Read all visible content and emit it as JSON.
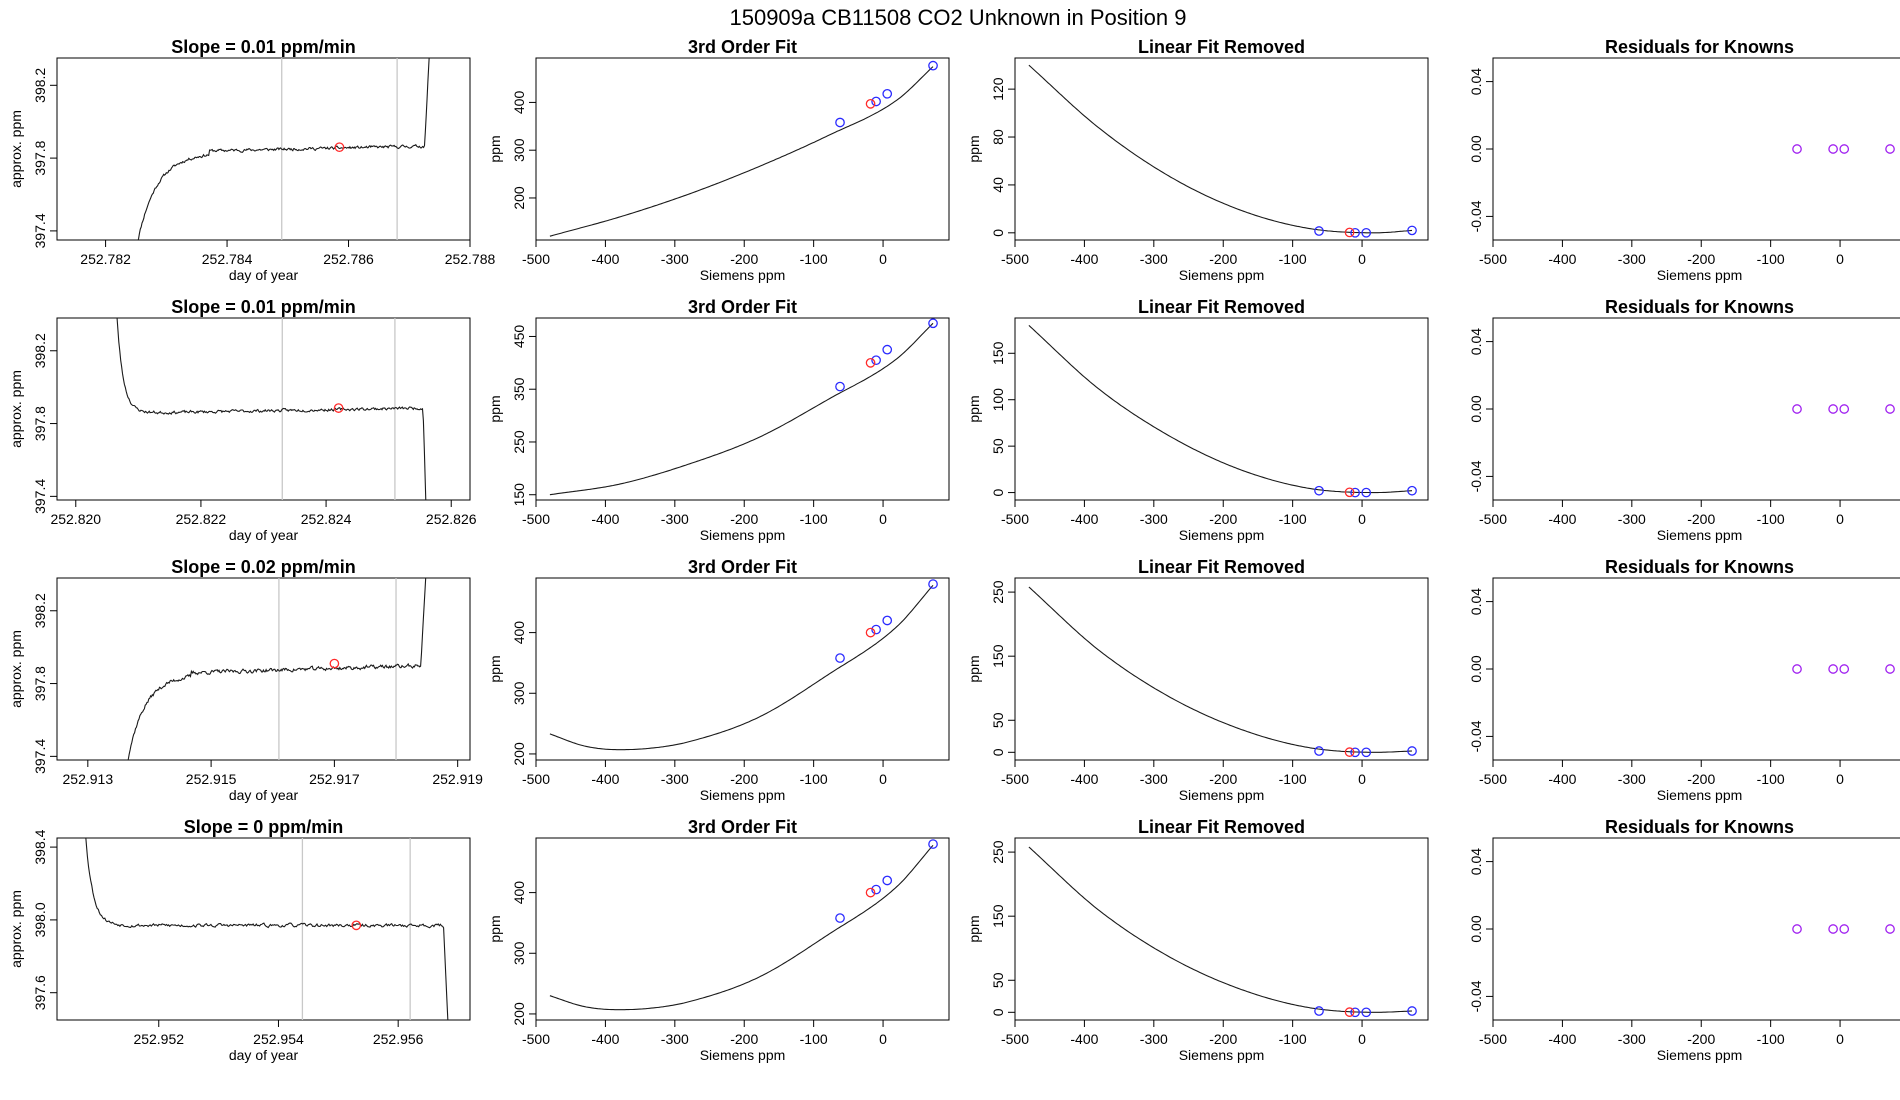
{
  "figure_title": "150909a      CB11508    CO2 Unknown in Position  9",
  "chart_data": [
    {
      "type": "line",
      "title": "Slope =  0.01  ppm/min",
      "xlabel": "day of year",
      "ylabel": "approx. ppm",
      "xlim": [
        252.7812,
        252.788
      ],
      "ylim": [
        397.35,
        398.35
      ],
      "xticks": [
        252.782,
        252.784,
        252.786,
        252.788
      ],
      "xtick_labels": [
        "252.782",
        "252.784",
        "252.786",
        "252.788"
      ],
      "yticks": [
        397.4,
        397.8,
        398.2
      ],
      "ytick_labels": [
        "397.4",
        "397.8",
        "398.2"
      ],
      "vlines": [
        252.7849,
        252.7868
      ],
      "marker": {
        "x": 252.78585,
        "y": 397.86
      },
      "trace": {
        "x_start": 252.7825,
        "x_end": 252.78735,
        "start": 397.3,
        "level": 397.84,
        "end": 398.5,
        "rise_frac": 0.25,
        "end_frac": 0.02,
        "rise_dir": 1,
        "slope": 0.035,
        "noise": 0.006,
        "seed": 11
      }
    },
    {
      "type": "line",
      "title": "3rd Order Fit",
      "xlabel": "Siemens ppm",
      "ylabel": "ppm",
      "xlim": [
        -500,
        95
      ],
      "ylim": [
        112,
        493
      ],
      "xticks": [
        -500,
        -400,
        -300,
        -200,
        -100,
        0
      ],
      "xtick_labels": [
        "-500",
        "-400",
        "-300",
        "-200",
        "-100",
        "0"
      ],
      "yticks": [
        200,
        300,
        400
      ],
      "ytick_labels": [
        "200",
        "300",
        "400"
      ],
      "curve": {
        "x": [
          -480,
          -380,
          -280,
          -180,
          -80,
          20,
          72
        ],
        "y": [
          120,
          160,
          208,
          265,
          330,
          405,
          475
        ]
      },
      "points_blue": [
        {
          "x": -62,
          "y": 358
        },
        {
          "x": -10,
          "y": 402
        },
        {
          "x": 6,
          "y": 418
        },
        {
          "x": 72,
          "y": 477
        }
      ],
      "points_red": [
        {
          "x": -18,
          "y": 397
        }
      ]
    },
    {
      "type": "line",
      "title": "Linear Fit Removed",
      "xlabel": "Siemens ppm",
      "ylabel": "ppm",
      "xlim": [
        -500,
        95
      ],
      "ylim": [
        -6,
        146
      ],
      "xticks": [
        -500,
        -400,
        -300,
        -200,
        -100,
        0
      ],
      "xtick_labels": [
        "-500",
        "-400",
        "-300",
        "-200",
        "-100",
        "0"
      ],
      "yticks": [
        0,
        40,
        80,
        120
      ],
      "ytick_labels": [
        "0",
        "40",
        "80",
        "120"
      ],
      "curve": {
        "x": [
          -480,
          -380,
          -280,
          -180,
          -80,
          20,
          72
        ],
        "y": [
          140,
          88,
          48,
          20,
          4,
          0,
          2
        ]
      },
      "points_blue": [
        {
          "x": -62,
          "y": 1.5
        },
        {
          "x": -10,
          "y": 0
        },
        {
          "x": 6,
          "y": 0
        },
        {
          "x": 72,
          "y": 2
        }
      ],
      "points_red": [
        {
          "x": -18,
          "y": 0.3
        }
      ]
    },
    {
      "type": "scatter",
      "title": "Residuals for Knowns",
      "xlabel": "Siemens ppm",
      "ylabel": "",
      "xlim": [
        -500,
        95
      ],
      "ylim": [
        -0.054,
        0.054
      ],
      "xticks": [
        -500,
        -400,
        -300,
        -200,
        -100,
        0
      ],
      "xtick_labels": [
        "-500",
        "-400",
        "-300",
        "-200",
        "-100",
        "0"
      ],
      "yticks": [
        -0.04,
        0,
        0.04
      ],
      "ytick_labels": [
        "-0.04",
        "0.00",
        "0.04"
      ],
      "points_purple": [
        {
          "x": -62,
          "y": 0
        },
        {
          "x": -10,
          "y": 0
        },
        {
          "x": 6,
          "y": 0
        },
        {
          "x": 72,
          "y": 0
        }
      ]
    },
    {
      "type": "line",
      "title": "Slope =  0.01  ppm/min",
      "xlabel": "day of year",
      "ylabel": "approx. ppm",
      "xlim": [
        252.8197,
        252.8263
      ],
      "ylim": [
        397.38,
        398.38
      ],
      "xticks": [
        252.82,
        252.822,
        252.824,
        252.826
      ],
      "xtick_labels": [
        "252.820",
        "252.822",
        "252.824",
        "252.826"
      ],
      "yticks": [
        397.4,
        397.8,
        398.2
      ],
      "ytick_labels": [
        "397.4",
        "397.8",
        "398.2"
      ],
      "vlines": [
        252.8233,
        252.8251
      ],
      "marker": {
        "x": 252.8242,
        "y": 397.885
      },
      "trace": {
        "x_start": 252.8206,
        "x_end": 252.8256,
        "start": 398.8,
        "level": 397.86,
        "end": 397.3,
        "rise_frac": 0.14,
        "end_frac": 0.01,
        "rise_dir": -1,
        "slope": 0.03,
        "noise": 0.006,
        "seed": 23
      }
    },
    {
      "type": "line",
      "title": "3rd Order Fit",
      "xlabel": "Siemens ppm",
      "ylabel": "ppm",
      "xlim": [
        -500,
        95
      ],
      "ylim": [
        140,
        485
      ],
      "xticks": [
        -500,
        -400,
        -300,
        -200,
        -100,
        0
      ],
      "xtick_labels": [
        "-500",
        "-400",
        "-300",
        "-200",
        "-100",
        "0"
      ],
      "yticks": [
        150,
        250,
        350,
        450
      ],
      "ytick_labels": [
        "150",
        "250",
        "350",
        "450"
      ],
      "curve": {
        "x": [
          -480,
          -380,
          -280,
          -180,
          -80,
          20,
          72
        ],
        "y": [
          150,
          170,
          208,
          258,
          330,
          408,
          475
        ]
      },
      "points_blue": [
        {
          "x": -62,
          "y": 355
        },
        {
          "x": -10,
          "y": 405
        },
        {
          "x": 6,
          "y": 425
        },
        {
          "x": 72,
          "y": 475
        }
      ],
      "points_red": [
        {
          "x": -18,
          "y": 400
        }
      ]
    },
    {
      "type": "line",
      "title": "Linear Fit Removed",
      "xlabel": "Siemens ppm",
      "ylabel": "ppm",
      "xlim": [
        -500,
        95
      ],
      "ylim": [
        -8,
        188
      ],
      "xticks": [
        -500,
        -400,
        -300,
        -200,
        -100,
        0
      ],
      "xtick_labels": [
        "-500",
        "-400",
        "-300",
        "-200",
        "-100",
        "0"
      ],
      "yticks": [
        0,
        50,
        100,
        150
      ],
      "ytick_labels": [
        "0",
        "50",
        "100",
        "150"
      ],
      "curve": {
        "x": [
          -480,
          -380,
          -280,
          -180,
          -80,
          20,
          72
        ],
        "y": [
          180,
          112,
          62,
          26,
          5,
          0,
          2
        ]
      },
      "points_blue": [
        {
          "x": -62,
          "y": 2
        },
        {
          "x": -10,
          "y": 0
        },
        {
          "x": 6,
          "y": 0
        },
        {
          "x": 72,
          "y": 2
        }
      ],
      "points_red": [
        {
          "x": -18,
          "y": 0.3
        }
      ]
    },
    {
      "type": "scatter",
      "title": "Residuals for Knowns",
      "xlabel": "Siemens ppm",
      "ylabel": "",
      "xlim": [
        -500,
        95
      ],
      "ylim": [
        -0.054,
        0.054
      ],
      "xticks": [
        -500,
        -400,
        -300,
        -200,
        -100,
        0
      ],
      "xtick_labels": [
        "-500",
        "-400",
        "-300",
        "-200",
        "-100",
        "0"
      ],
      "yticks": [
        -0.04,
        0,
        0.04
      ],
      "ytick_labels": [
        "-0.04",
        "0.00",
        "0.04"
      ],
      "points_purple": [
        {
          "x": -62,
          "y": 0
        },
        {
          "x": -10,
          "y": 0
        },
        {
          "x": 6,
          "y": 0
        },
        {
          "x": 72,
          "y": 0
        }
      ]
    },
    {
      "type": "line",
      "title": "Slope =  0.02  ppm/min",
      "xlabel": "day of year",
      "ylabel": "approx. ppm",
      "xlim": [
        252.9125,
        252.9192
      ],
      "ylim": [
        397.38,
        398.38
      ],
      "xticks": [
        252.913,
        252.915,
        252.917,
        252.919
      ],
      "xtick_labels": [
        "252.913",
        "252.915",
        "252.917",
        "252.919"
      ],
      "yticks": [
        397.4,
        397.8,
        398.2
      ],
      "ytick_labels": [
        "397.4",
        "397.8",
        "398.2"
      ],
      "vlines": [
        252.9161,
        252.918
      ],
      "marker": {
        "x": 252.917,
        "y": 397.91
      },
      "trace": {
        "x_start": 252.9136,
        "x_end": 252.9185,
        "start": 397.3,
        "level": 397.86,
        "end": 398.5,
        "rise_frac": 0.22,
        "end_frac": 0.02,
        "rise_dir": 1,
        "slope": 0.05,
        "noise": 0.008,
        "seed": 37
      }
    },
    {
      "type": "line",
      "title": "3rd Order Fit",
      "xlabel": "Siemens ppm",
      "ylabel": "ppm",
      "xlim": [
        -500,
        95
      ],
      "ylim": [
        190,
        490
      ],
      "xticks": [
        -500,
        -400,
        -300,
        -200,
        -100,
        0
      ],
      "xtick_labels": [
        "-500",
        "-400",
        "-300",
        "-200",
        "-100",
        "0"
      ],
      "yticks": [
        200,
        300,
        400
      ],
      "ytick_labels": [
        "200",
        "300",
        "400"
      ],
      "curve": {
        "x": [
          -480,
          -430,
          -380,
          -330,
          -280,
          -180,
          -80,
          20,
          72
        ],
        "y": [
          233,
          213,
          207,
          210,
          220,
          260,
          330,
          410,
          478
        ]
      },
      "points_blue": [
        {
          "x": -62,
          "y": 358
        },
        {
          "x": -10,
          "y": 405
        },
        {
          "x": 6,
          "y": 420
        },
        {
          "x": 72,
          "y": 480
        }
      ],
      "points_red": [
        {
          "x": -18,
          "y": 400
        }
      ]
    },
    {
      "type": "line",
      "title": "Linear Fit Removed",
      "xlabel": "Siemens ppm",
      "ylabel": "ppm",
      "xlim": [
        -500,
        95
      ],
      "ylim": [
        -12,
        272
      ],
      "xticks": [
        -500,
        -400,
        -300,
        -200,
        -100,
        0
      ],
      "xtick_labels": [
        "-500",
        "-400",
        "-300",
        "-200",
        "-100",
        "0"
      ],
      "yticks": [
        0,
        50,
        150,
        250
      ],
      "ytick_labels": [
        "0",
        "50",
        "150",
        "250"
      ],
      "curve": {
        "x": [
          -480,
          -380,
          -280,
          -180,
          -80,
          20,
          72
        ],
        "y": [
          258,
          160,
          88,
          38,
          8,
          0,
          2
        ]
      },
      "points_blue": [
        {
          "x": -62,
          "y": 2
        },
        {
          "x": -10,
          "y": 0
        },
        {
          "x": 6,
          "y": 0
        },
        {
          "x": 72,
          "y": 2
        }
      ],
      "points_red": [
        {
          "x": -18,
          "y": 0.3
        }
      ]
    },
    {
      "type": "scatter",
      "title": "Residuals for Knowns",
      "xlabel": "Siemens ppm",
      "ylabel": "",
      "xlim": [
        -500,
        95
      ],
      "ylim": [
        -0.054,
        0.054
      ],
      "xticks": [
        -500,
        -400,
        -300,
        -200,
        -100,
        0
      ],
      "xtick_labels": [
        "-500",
        "-400",
        "-300",
        "-200",
        "-100",
        "0"
      ],
      "yticks": [
        -0.04,
        0,
        0.04
      ],
      "ytick_labels": [
        "-0.04",
        "0.00",
        "0.04"
      ],
      "points_purple": [
        {
          "x": -62,
          "y": 0
        },
        {
          "x": -10,
          "y": 0
        },
        {
          "x": 6,
          "y": 0
        },
        {
          "x": 72,
          "y": 0
        }
      ]
    },
    {
      "type": "line",
      "title": "Slope =  0  ppm/min",
      "xlabel": "day of year",
      "ylabel": "approx. ppm",
      "xlim": [
        252.9503,
        252.9572
      ],
      "ylim": [
        397.45,
        398.45
      ],
      "xticks": [
        252.952,
        252.954,
        252.956
      ],
      "xtick_labels": [
        "252.952",
        "252.954",
        "252.956"
      ],
      "yticks": [
        397.6,
        398.0,
        398.4
      ],
      "ytick_labels": [
        "397.6",
        "398.0",
        "398.4"
      ],
      "vlines": [
        252.9544,
        252.9562
      ],
      "marker": {
        "x": 252.9553,
        "y": 397.97
      },
      "trace": {
        "x_start": 252.9507,
        "x_end": 252.95685,
        "start": 398.9,
        "level": 397.97,
        "end": 397.3,
        "rise_frac": 0.14,
        "end_frac": 0.015,
        "rise_dir": -1,
        "slope": 0.0,
        "noise": 0.007,
        "seed": 53
      }
    },
    {
      "type": "line",
      "title": "3rd Order Fit",
      "xlabel": "Siemens ppm",
      "ylabel": "ppm",
      "xlim": [
        -500,
        95
      ],
      "ylim": [
        190,
        490
      ],
      "xticks": [
        -500,
        -400,
        -300,
        -200,
        -100,
        0
      ],
      "xtick_labels": [
        "-500",
        "-400",
        "-300",
        "-200",
        "-100",
        "0"
      ],
      "yticks": [
        200,
        300,
        400
      ],
      "ytick_labels": [
        "200",
        "300",
        "400"
      ],
      "curve": {
        "x": [
          -480,
          -430,
          -380,
          -330,
          -280,
          -180,
          -80,
          20,
          72
        ],
        "y": [
          230,
          212,
          207,
          210,
          220,
          260,
          330,
          410,
          478
        ]
      },
      "points_blue": [
        {
          "x": -62,
          "y": 358
        },
        {
          "x": -10,
          "y": 405
        },
        {
          "x": 6,
          "y": 420
        },
        {
          "x": 72,
          "y": 480
        }
      ],
      "points_red": [
        {
          "x": -18,
          "y": 400
        }
      ]
    },
    {
      "type": "line",
      "title": "Linear Fit Removed",
      "xlabel": "Siemens ppm",
      "ylabel": "ppm",
      "xlim": [
        -500,
        95
      ],
      "ylim": [
        -12,
        272
      ],
      "xticks": [
        -500,
        -400,
        -300,
        -200,
        -100,
        0
      ],
      "xtick_labels": [
        "-500",
        "-400",
        "-300",
        "-200",
        "-100",
        "0"
      ],
      "yticks": [
        0,
        50,
        150,
        250
      ],
      "ytick_labels": [
        "0",
        "50",
        "150",
        "250"
      ],
      "curve": {
        "x": [
          -480,
          -380,
          -280,
          -180,
          -80,
          20,
          72
        ],
        "y": [
          258,
          160,
          88,
          38,
          8,
          0,
          2
        ]
      },
      "points_blue": [
        {
          "x": -62,
          "y": 2
        },
        {
          "x": -10,
          "y": 0
        },
        {
          "x": 6,
          "y": 0
        },
        {
          "x": 72,
          "y": 2
        }
      ],
      "points_red": [
        {
          "x": -18,
          "y": 0.3
        }
      ]
    },
    {
      "type": "scatter",
      "title": "Residuals for Knowns",
      "xlabel": "Siemens ppm",
      "ylabel": "",
      "xlim": [
        -500,
        95
      ],
      "ylim": [
        -0.054,
        0.054
      ],
      "xticks": [
        -500,
        -400,
        -300,
        -200,
        -100,
        0
      ],
      "xtick_labels": [
        "-500",
        "-400",
        "-300",
        "-200",
        "-100",
        "0"
      ],
      "yticks": [
        -0.04,
        0,
        0.04
      ],
      "ytick_labels": [
        "-0.04",
        "0.00",
        "0.04"
      ],
      "points_purple": [
        {
          "x": -62,
          "y": 0
        },
        {
          "x": -10,
          "y": 0
        },
        {
          "x": 6,
          "y": 0
        },
        {
          "x": 72,
          "y": 0
        }
      ]
    }
  ],
  "colors": {
    "axis": "#000000",
    "line": "#1a1a1a",
    "vline": "#c8c8c8",
    "marker_red": "#ff2a2a",
    "marker_blue": "#2a2aff",
    "marker_purple": "#a020f0"
  }
}
